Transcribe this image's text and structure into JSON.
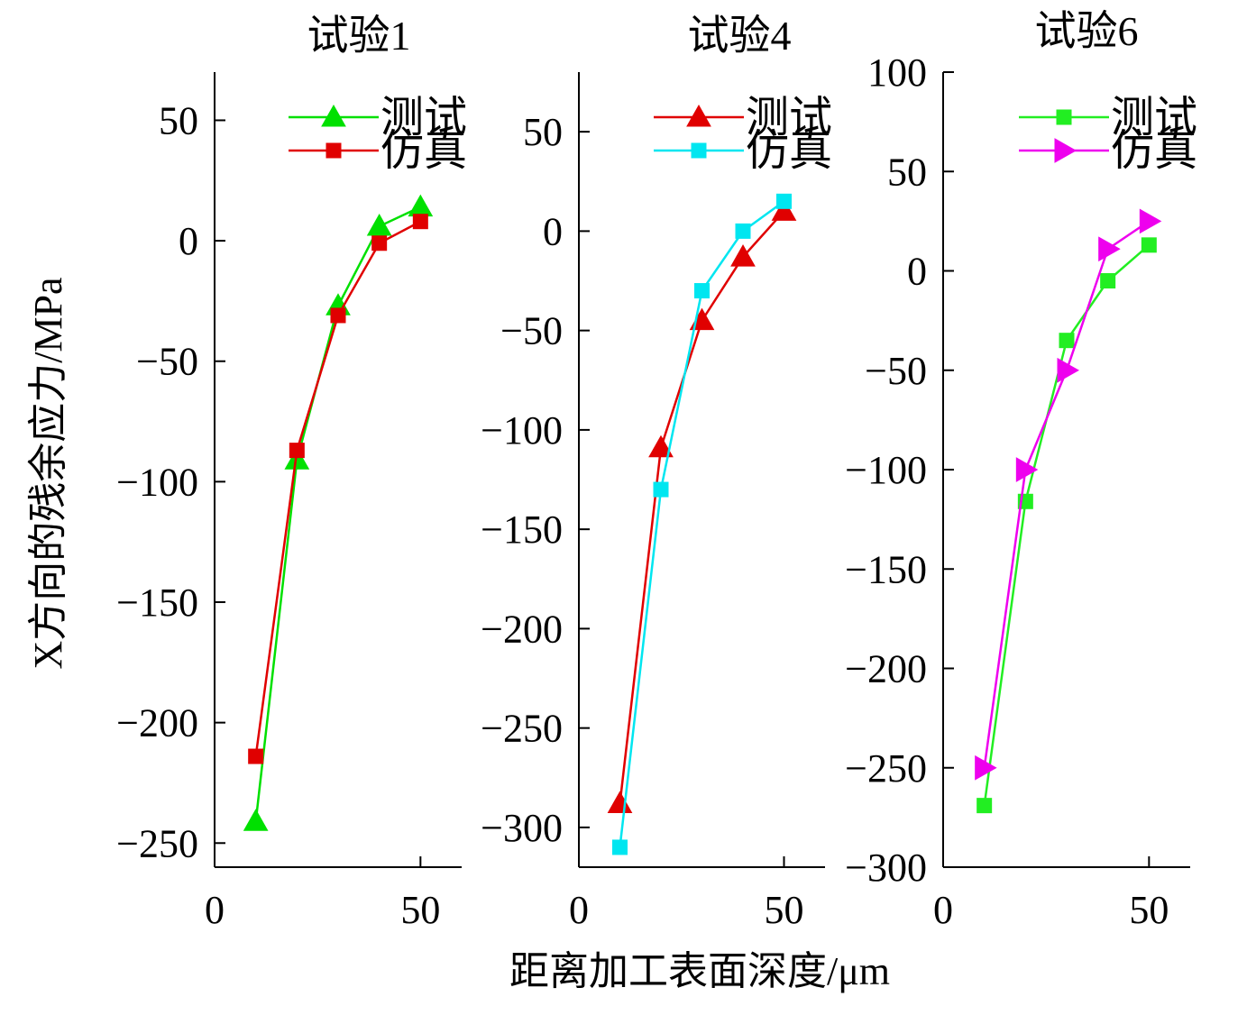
{
  "figure": {
    "ylabel": "X方向的残余应力/MPa",
    "xlabel": "距离加工表面深度/μm"
  },
  "chart_data": [
    {
      "type": "line",
      "title": "试验1",
      "xlim": [
        0,
        60
      ],
      "ylim": [
        -260,
        70
      ],
      "xticks": [
        0,
        50
      ],
      "yticks": [
        50,
        0,
        -50,
        -100,
        -150,
        -200,
        -250
      ],
      "ytick_labels": [
        "50",
        "0",
        "−50",
        "−100",
        "−150",
        "−200",
        "−250"
      ],
      "x": [
        10,
        20,
        30,
        40,
        50
      ],
      "series": [
        {
          "name": "测试",
          "color": "#00e000",
          "marker": "triangle-up",
          "values": [
            -241,
            -91,
            -27,
            6,
            14
          ]
        },
        {
          "name": "仿真",
          "color": "#e00000",
          "marker": "square",
          "values": [
            -214,
            -87,
            -31,
            -1,
            8
          ]
        }
      ],
      "legend": "top-right"
    },
    {
      "type": "line",
      "title": "试验4",
      "xlim": [
        0,
        60
      ],
      "ylim": [
        -320,
        80
      ],
      "xticks": [
        0,
        50
      ],
      "yticks": [
        50,
        0,
        -50,
        -100,
        -150,
        -200,
        -250,
        -300
      ],
      "ytick_labels": [
        "50",
        "0",
        "−50",
        "−100",
        "−150",
        "−200",
        "−250",
        "−300"
      ],
      "x": [
        10,
        20,
        30,
        40,
        50
      ],
      "series": [
        {
          "name": "测试",
          "color": "#e00000",
          "marker": "triangle-up",
          "values": [
            -288,
            -109,
            -45,
            -13,
            10
          ]
        },
        {
          "name": "仿真",
          "color": "#00e6f0",
          "marker": "square",
          "values": [
            -310,
            -130,
            -30,
            0,
            15
          ]
        }
      ],
      "legend": "top-right"
    },
    {
      "type": "line",
      "title": "试验6",
      "xlim": [
        0,
        60
      ],
      "ylim": [
        -300,
        100
      ],
      "xticks": [
        0,
        50
      ],
      "yticks": [
        100,
        50,
        0,
        -50,
        -100,
        -150,
        -200,
        -250,
        -300
      ],
      "ytick_labels": [
        "100",
        "50",
        "0",
        "−50",
        "−100",
        "−150",
        "−200",
        "−250",
        "−300"
      ],
      "x": [
        10,
        20,
        30,
        40,
        50
      ],
      "series": [
        {
          "name": "测试",
          "color": "#22ee22",
          "marker": "square",
          "values": [
            -269,
            -116,
            -35,
            -5,
            13
          ]
        },
        {
          "name": "仿真",
          "color": "#ee00ee",
          "marker": "triangle-right",
          "values": [
            -250,
            -100,
            -50,
            11,
            25
          ]
        }
      ],
      "legend": "top-right"
    }
  ]
}
